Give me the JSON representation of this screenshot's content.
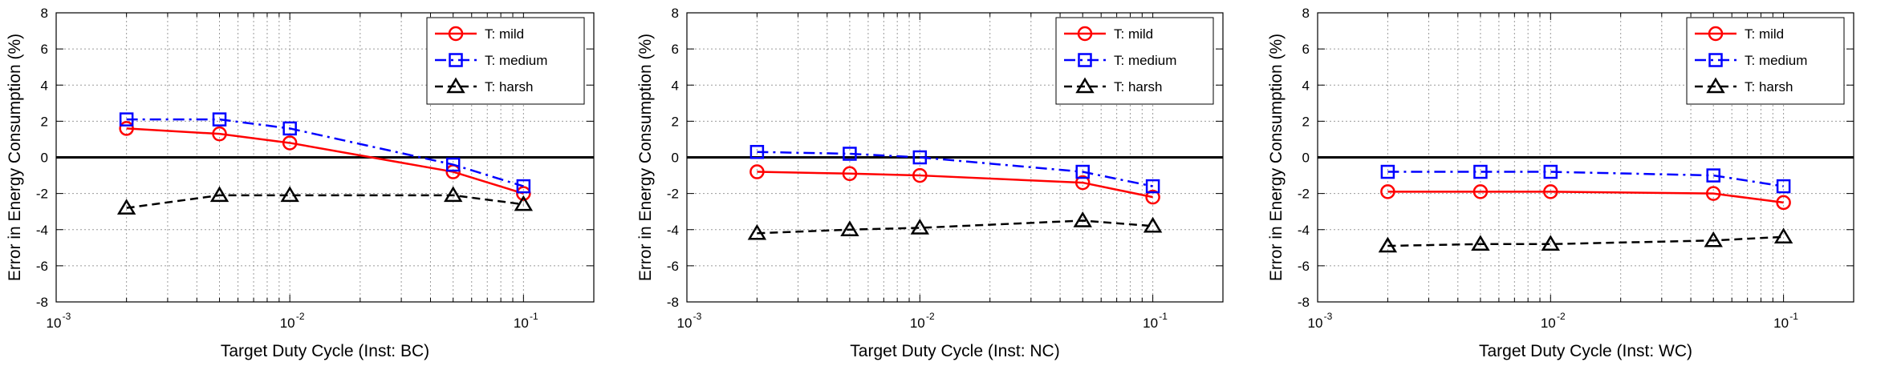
{
  "chart_data": [
    {
      "type": "line",
      "xscale": "log",
      "xlim": [
        0.001,
        0.2
      ],
      "ylim": [
        -8,
        8
      ],
      "grid": true,
      "legend_position": "top-right",
      "xlabel": "Target Duty Cycle (Inst: BC)",
      "ylabel": "Error in Energy Consumption (%)",
      "x": [
        0.002,
        0.005,
        0.01,
        0.05,
        0.1
      ],
      "series": [
        {
          "name": "T: mild",
          "values": [
            1.6,
            1.3,
            0.8,
            -0.8,
            -2.0
          ],
          "color": "#ff0000",
          "marker": "circle",
          "dash": "solid"
        },
        {
          "name": "T: medium",
          "values": [
            2.1,
            2.1,
            1.6,
            -0.4,
            -1.6
          ],
          "color": "#0000ff",
          "marker": "square",
          "dash": "dashdot"
        },
        {
          "name": "T: harsh",
          "values": [
            -2.8,
            -2.1,
            -2.1,
            -2.1,
            -2.6
          ],
          "color": "#000000",
          "marker": "triangle",
          "dash": "dashed"
        }
      ]
    },
    {
      "type": "line",
      "xscale": "log",
      "xlim": [
        0.001,
        0.2
      ],
      "ylim": [
        -8,
        8
      ],
      "grid": true,
      "legend_position": "top-right",
      "xlabel": "Target Duty Cycle (Inst: NC)",
      "ylabel": "Error in Energy Consumption (%)",
      "x": [
        0.002,
        0.005,
        0.01,
        0.05,
        0.1
      ],
      "series": [
        {
          "name": "T: mild",
          "values": [
            -0.8,
            -0.9,
            -1.0,
            -1.4,
            -2.2
          ],
          "color": "#ff0000",
          "marker": "circle",
          "dash": "solid"
        },
        {
          "name": "T: medium",
          "values": [
            0.3,
            0.2,
            0.0,
            -0.8,
            -1.6
          ],
          "color": "#0000ff",
          "marker": "square",
          "dash": "dashdot"
        },
        {
          "name": "T: harsh",
          "values": [
            -4.2,
            -4.0,
            -3.9,
            -3.5,
            -3.8
          ],
          "color": "#000000",
          "marker": "triangle",
          "dash": "dashed"
        }
      ]
    },
    {
      "type": "line",
      "xscale": "log",
      "xlim": [
        0.001,
        0.2
      ],
      "ylim": [
        -8,
        8
      ],
      "grid": true,
      "legend_position": "top-right",
      "xlabel": "Target Duty Cycle (Inst: WC)",
      "ylabel": "Error in Energy Consumption (%)",
      "x": [
        0.002,
        0.005,
        0.01,
        0.05,
        0.1
      ],
      "series": [
        {
          "name": "T: mild",
          "values": [
            -1.9,
            -1.9,
            -1.9,
            -2.0,
            -2.5
          ],
          "color": "#ff0000",
          "marker": "circle",
          "dash": "solid"
        },
        {
          "name": "T: medium",
          "values": [
            -0.8,
            -0.8,
            -0.8,
            -1.0,
            -1.6
          ],
          "color": "#0000ff",
          "marker": "square",
          "dash": "dashdot"
        },
        {
          "name": "T: harsh",
          "values": [
            -4.9,
            -4.8,
            -4.8,
            -4.6,
            -4.4
          ],
          "color": "#000000",
          "marker": "triangle",
          "dash": "dashed"
        }
      ]
    }
  ],
  "axis": {
    "y_ticks": [
      "-8",
      "-6",
      "-4",
      "-2",
      "0",
      "2",
      "4",
      "6",
      "8"
    ],
    "x_ticks": [
      {
        "base": "10",
        "exp": "-3"
      },
      {
        "base": "10",
        "exp": "-2"
      },
      {
        "base": "10",
        "exp": "-1"
      }
    ]
  }
}
